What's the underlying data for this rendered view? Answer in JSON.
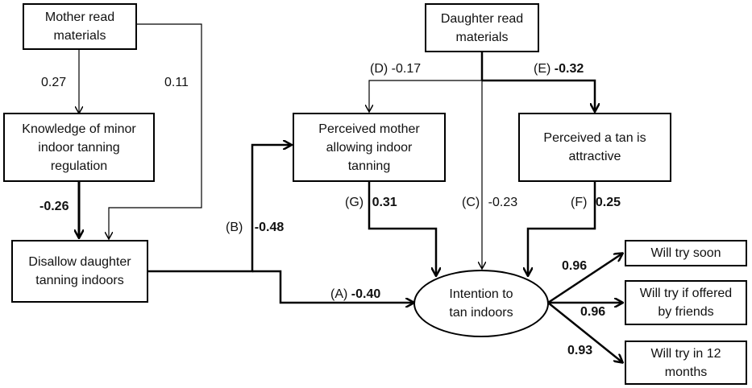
{
  "nodes": {
    "mother_read": "Mother read\nmaterials",
    "daughter_read": "Daughter read\nmaterials",
    "knowledge": "Knowledge of minor\nindoor tanning\nregulation",
    "perceived_mother": "Perceived mother\nallowing indoor\ntanning",
    "perceived_tan": "Perceived a tan is\nattractive",
    "disallow": "Disallow daughter\ntanning indoors",
    "intention": "Intention to\ntan indoors",
    "try_soon": "Will try soon",
    "try_friends": "Will try if offered\nby friends",
    "try_12": "Will try in 12\nmonths"
  },
  "paths": {
    "mother_knowledge": {
      "coef": "0.27"
    },
    "mother_disallow": {
      "coef": "0.11"
    },
    "knowledge_disallow": {
      "coef": "-0.26"
    },
    "B": {
      "tag": "(B)",
      "coef": "-0.48"
    },
    "A": {
      "tag": "(A)",
      "coef": "-0.40"
    },
    "D": {
      "tag": "(D)",
      "coef": "-0.17"
    },
    "E": {
      "tag": "(E)",
      "coef": "-0.32"
    },
    "C": {
      "tag": "(C)",
      "coef": "-0.23"
    },
    "G": {
      "tag": "(G)",
      "coef": "0.31"
    },
    "F": {
      "tag": "(F)",
      "coef": "0.25"
    },
    "load_soon": {
      "coef": "0.96"
    },
    "load_friends": {
      "coef": "0.96"
    },
    "load_12": {
      "coef": "0.93"
    }
  }
}
